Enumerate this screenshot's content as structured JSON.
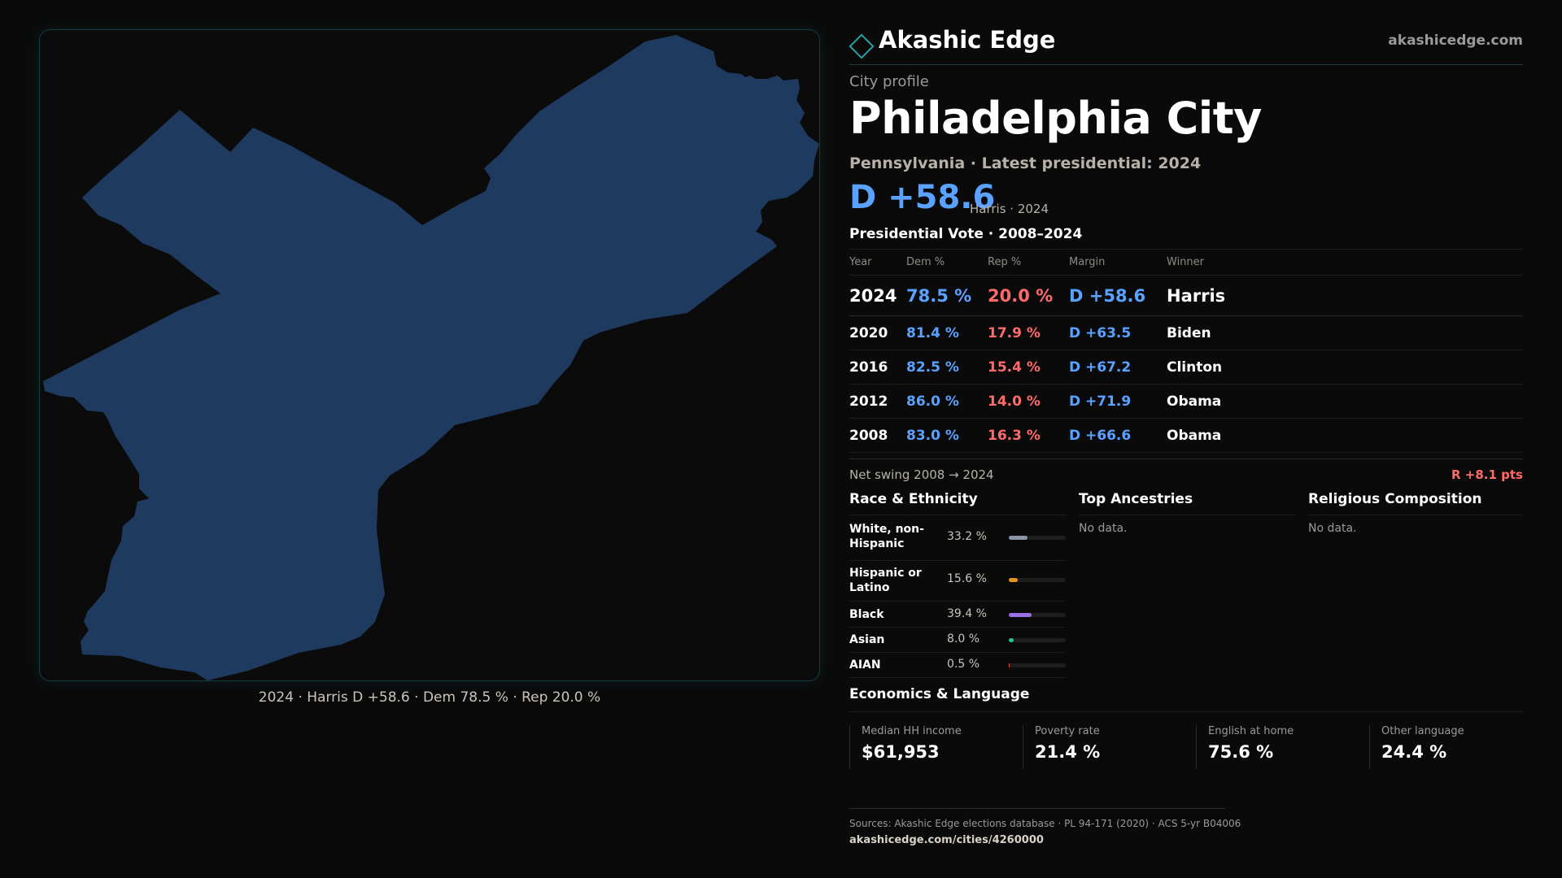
{
  "map": {
    "caption": "2024 · Harris D +58.6 · Dem 78.5 % · Rep 20.0 %",
    "fill_color": "#1f3a5f",
    "border_color": "#123f46"
  },
  "brand": {
    "name": "Akashic Edge",
    "url": "akashicedge.com",
    "logo_icon": "diamond-outline"
  },
  "profile": {
    "eyebrow": "City profile",
    "title": "Philadelphia City",
    "subtitle": "Pennsylvania · Latest presidential: 2024",
    "margin": "D +58.6",
    "margin_note": "Harris · 2024"
  },
  "votes": {
    "title": "Presidential Vote · 2008–2024",
    "headers": {
      "year": "Year",
      "dem": "Dem %",
      "rep": "Rep %",
      "margin": "Margin",
      "winner": "Winner"
    },
    "rows": [
      {
        "year": "2024",
        "dem": "78.5 %",
        "rep": "20.0 %",
        "margin": "D +58.6",
        "winner": "Harris"
      },
      {
        "year": "2020",
        "dem": "81.4 %",
        "rep": "17.9 %",
        "margin": "D +63.5",
        "winner": "Biden"
      },
      {
        "year": "2016",
        "dem": "82.5 %",
        "rep": "15.4 %",
        "margin": "D +67.2",
        "winner": "Clinton"
      },
      {
        "year": "2012",
        "dem": "86.0 %",
        "rep": "14.0 %",
        "margin": "D +71.9",
        "winner": "Obama"
      },
      {
        "year": "2008",
        "dem": "83.0 %",
        "rep": "16.3 %",
        "margin": "D +66.6",
        "winner": "Obama"
      }
    ]
  },
  "swing": {
    "label": "Net swing 2008 → 2024",
    "value": "R +8.1 pts"
  },
  "race": {
    "title": "Race & Ethnicity",
    "rows": [
      {
        "label": "White, non-Hispanic",
        "pct": "33.2 %",
        "value": 33.2,
        "color": "#8a96a8"
      },
      {
        "label": "Hispanic or Latino",
        "pct": "15.6 %",
        "value": 15.6,
        "color": "#e0951e"
      },
      {
        "label": "Black",
        "pct": "39.4 %",
        "value": 39.4,
        "color": "#9b6ee6"
      },
      {
        "label": "Asian",
        "pct": "8.0 %",
        "value": 8.0,
        "color": "#28c08a"
      },
      {
        "label": "AIAN",
        "pct": "0.5 %",
        "value": 0.5,
        "color": "#e0572e"
      }
    ]
  },
  "ancestries": {
    "title": "Top Ancestries",
    "empty": "No data."
  },
  "religion": {
    "title": "Religious Composition",
    "empty": "No data."
  },
  "economics": {
    "title": "Economics & Language",
    "metrics": [
      {
        "label": "Median HH income",
        "value": "$61,953"
      },
      {
        "label": "Poverty rate",
        "value": "21.4 %"
      },
      {
        "label": "English at home",
        "value": "75.6 %"
      },
      {
        "label": "Other language",
        "value": "24.4 %"
      }
    ]
  },
  "footer": {
    "sources": "Sources: Akashic Edge elections database · PL 94-171 (2020) · ACS 5-yr B04006",
    "url": "akashicedge.com/cities/4260000"
  }
}
